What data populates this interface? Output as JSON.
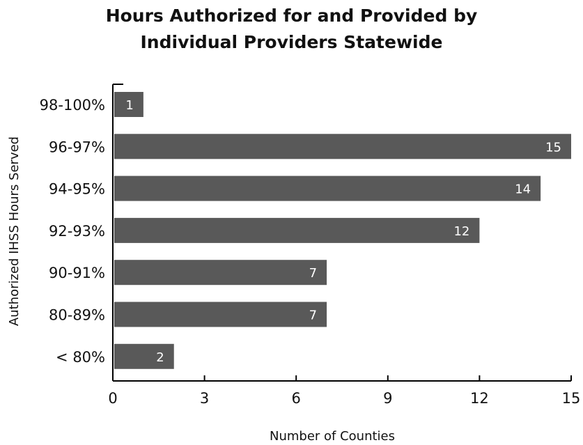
{
  "chart_data": {
    "type": "bar",
    "orientation": "horizontal",
    "title_lines": [
      "Hours Authorized for and Provided by",
      "Individual Providers Statewide"
    ],
    "xlabel": "Number of Counties",
    "ylabel": "Authorized IHSS Hours Served",
    "categories": [
      "98-100%",
      "96-97%",
      "94-95%",
      "92-93%",
      "90-91%",
      "80-89%",
      "< 80%"
    ],
    "values": [
      1,
      15,
      14,
      12,
      7,
      7,
      2
    ],
    "xlim": [
      0,
      15
    ],
    "xticks": [
      "0",
      "3",
      "6",
      "9",
      "12",
      "15"
    ],
    "grid": false,
    "bar_color": "#595959",
    "label_color": "#ffffff"
  }
}
